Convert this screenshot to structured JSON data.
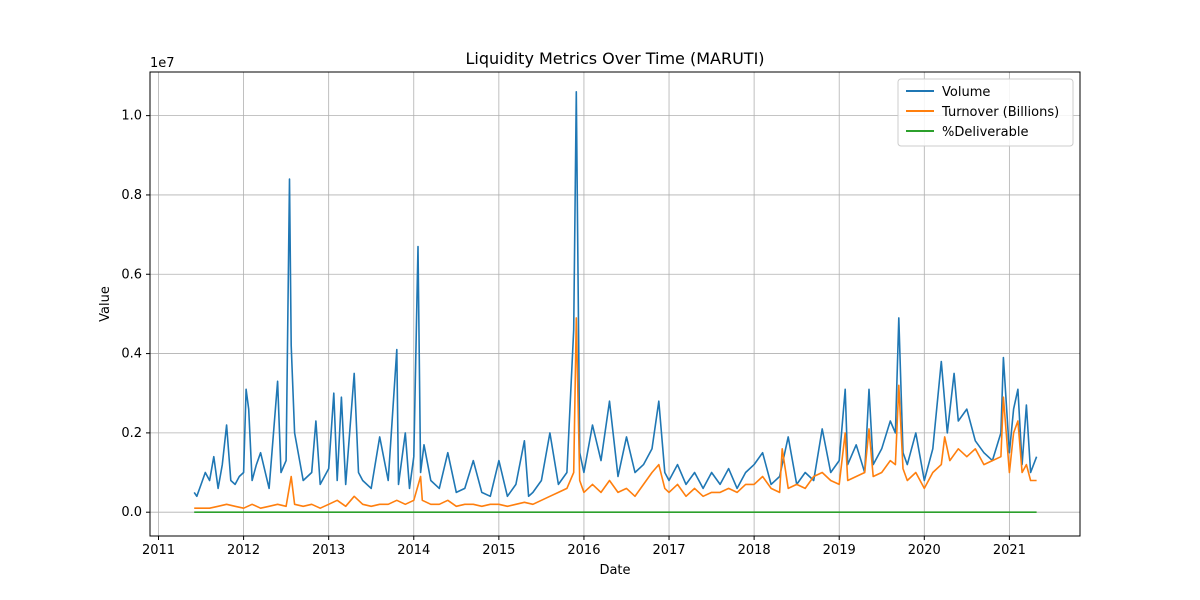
{
  "chart_data": {
    "type": "line",
    "title": "Liquidity Metrics Over Time (MARUTI)",
    "xlabel": "Date",
    "ylabel": "Value",
    "y_offset_label": "1e7",
    "xlim": [
      2010.9,
      2021.83
    ],
    "ylim": [
      -0.06,
      1.11
    ],
    "grid": true,
    "legend_position": "top-right",
    "x_ticks": [
      2011,
      2012,
      2013,
      2014,
      2015,
      2016,
      2017,
      2018,
      2019,
      2020,
      2021
    ],
    "x_tick_labels": [
      "2011",
      "2012",
      "2013",
      "2014",
      "2015",
      "2016",
      "2017",
      "2018",
      "2019",
      "2020",
      "2021"
    ],
    "y_ticks": [
      0.0,
      0.2,
      0.4,
      0.6,
      0.8,
      1.0
    ],
    "y_tick_labels": [
      "0.0",
      "0.2",
      "0.4",
      "0.6",
      "0.8",
      "1.0"
    ],
    "series": [
      {
        "name": "Volume",
        "color": "#1f77b4",
        "x": [
          2011.42,
          2011.45,
          2011.5,
          2011.55,
          2011.6,
          2011.65,
          2011.7,
          2011.75,
          2011.8,
          2011.85,
          2011.9,
          2011.95,
          2012.0,
          2012.03,
          2012.06,
          2012.1,
          2012.15,
          2012.2,
          2012.3,
          2012.4,
          2012.44,
          2012.5,
          2012.54,
          2012.56,
          2012.6,
          2012.7,
          2012.8,
          2012.85,
          2012.9,
          2013.0,
          2013.06,
          2013.1,
          2013.15,
          2013.2,
          2013.3,
          2013.35,
          2013.4,
          2013.5,
          2013.6,
          2013.7,
          2013.8,
          2013.82,
          2013.9,
          2013.95,
          2014.0,
          2014.05,
          2014.08,
          2014.12,
          2014.2,
          2014.3,
          2014.4,
          2014.5,
          2014.6,
          2014.7,
          2014.8,
          2014.9,
          2015.0,
          2015.1,
          2015.2,
          2015.3,
          2015.35,
          2015.4,
          2015.5,
          2015.6,
          2015.7,
          2015.8,
          2015.88,
          2015.91,
          2015.95,
          2016.0,
          2016.1,
          2016.2,
          2016.3,
          2016.4,
          2016.5,
          2016.6,
          2016.7,
          2016.8,
          2016.88,
          2016.95,
          2017.0,
          2017.1,
          2017.2,
          2017.3,
          2017.4,
          2017.5,
          2017.6,
          2017.7,
          2017.8,
          2017.9,
          2018.0,
          2018.1,
          2018.2,
          2018.3,
          2018.4,
          2018.5,
          2018.6,
          2018.7,
          2018.8,
          2018.9,
          2019.0,
          2019.07,
          2019.1,
          2019.2,
          2019.3,
          2019.35,
          2019.4,
          2019.5,
          2019.6,
          2019.66,
          2019.7,
          2019.75,
          2019.8,
          2019.9,
          2020.0,
          2020.1,
          2020.2,
          2020.27,
          2020.35,
          2020.4,
          2020.5,
          2020.6,
          2020.7,
          2020.8,
          2020.9,
          2020.93,
          2021.0,
          2021.05,
          2021.1,
          2021.15,
          2021.2,
          2021.25,
          2021.32
        ],
        "values": [
          0.05,
          0.04,
          0.07,
          0.1,
          0.08,
          0.14,
          0.06,
          0.12,
          0.22,
          0.08,
          0.07,
          0.09,
          0.1,
          0.31,
          0.26,
          0.08,
          0.12,
          0.15,
          0.06,
          0.33,
          0.1,
          0.13,
          0.84,
          0.42,
          0.2,
          0.08,
          0.1,
          0.23,
          0.07,
          0.11,
          0.3,
          0.08,
          0.29,
          0.07,
          0.35,
          0.1,
          0.08,
          0.06,
          0.19,
          0.08,
          0.41,
          0.07,
          0.2,
          0.06,
          0.14,
          0.67,
          0.1,
          0.17,
          0.08,
          0.06,
          0.15,
          0.05,
          0.06,
          0.13,
          0.05,
          0.04,
          0.13,
          0.04,
          0.07,
          0.18,
          0.04,
          0.05,
          0.08,
          0.2,
          0.07,
          0.1,
          0.46,
          1.06,
          0.15,
          0.1,
          0.22,
          0.13,
          0.28,
          0.09,
          0.19,
          0.1,
          0.12,
          0.16,
          0.28,
          0.1,
          0.08,
          0.12,
          0.07,
          0.1,
          0.06,
          0.1,
          0.07,
          0.11,
          0.06,
          0.1,
          0.12,
          0.15,
          0.07,
          0.09,
          0.19,
          0.07,
          0.1,
          0.08,
          0.21,
          0.1,
          0.13,
          0.31,
          0.12,
          0.17,
          0.1,
          0.31,
          0.12,
          0.16,
          0.23,
          0.2,
          0.49,
          0.15,
          0.12,
          0.2,
          0.08,
          0.16,
          0.38,
          0.2,
          0.35,
          0.23,
          0.26,
          0.18,
          0.15,
          0.13,
          0.2,
          0.39,
          0.15,
          0.26,
          0.31,
          0.12,
          0.27,
          0.1,
          0.14
        ]
      },
      {
        "name": "Turnover (Billions)",
        "color": "#ff7f0e",
        "x": [
          2011.42,
          2011.5,
          2011.6,
          2011.7,
          2011.8,
          2011.9,
          2012.0,
          2012.1,
          2012.2,
          2012.3,
          2012.4,
          2012.5,
          2012.56,
          2012.6,
          2012.7,
          2012.8,
          2012.9,
          2013.0,
          2013.1,
          2013.2,
          2013.3,
          2013.4,
          2013.5,
          2013.6,
          2013.7,
          2013.8,
          2013.9,
          2014.0,
          2014.08,
          2014.1,
          2014.2,
          2014.3,
          2014.4,
          2014.5,
          2014.6,
          2014.7,
          2014.8,
          2014.9,
          2015.0,
          2015.1,
          2015.2,
          2015.3,
          2015.4,
          2015.5,
          2015.6,
          2015.7,
          2015.8,
          2015.88,
          2015.91,
          2015.95,
          2016.0,
          2016.1,
          2016.2,
          2016.3,
          2016.4,
          2016.5,
          2016.6,
          2016.7,
          2016.8,
          2016.88,
          2016.95,
          2017.0,
          2017.1,
          2017.2,
          2017.3,
          2017.4,
          2017.5,
          2017.6,
          2017.7,
          2017.8,
          2017.9,
          2018.0,
          2018.1,
          2018.2,
          2018.3,
          2018.33,
          2018.4,
          2018.5,
          2018.6,
          2018.7,
          2018.8,
          2018.9,
          2019.0,
          2019.07,
          2019.1,
          2019.2,
          2019.3,
          2019.35,
          2019.4,
          2019.5,
          2019.6,
          2019.66,
          2019.7,
          2019.75,
          2019.8,
          2019.9,
          2020.0,
          2020.1,
          2020.2,
          2020.24,
          2020.3,
          2020.4,
          2020.5,
          2020.6,
          2020.7,
          2020.8,
          2020.9,
          2020.93,
          2021.0,
          2021.05,
          2021.1,
          2021.15,
          2021.2,
          2021.25,
          2021.32
        ],
        "values": [
          0.01,
          0.01,
          0.01,
          0.015,
          0.02,
          0.015,
          0.01,
          0.02,
          0.01,
          0.015,
          0.02,
          0.015,
          0.09,
          0.02,
          0.015,
          0.02,
          0.01,
          0.02,
          0.03,
          0.015,
          0.04,
          0.02,
          0.015,
          0.02,
          0.02,
          0.03,
          0.02,
          0.03,
          0.09,
          0.03,
          0.02,
          0.02,
          0.03,
          0.015,
          0.02,
          0.02,
          0.015,
          0.02,
          0.02,
          0.015,
          0.02,
          0.025,
          0.02,
          0.03,
          0.04,
          0.05,
          0.06,
          0.1,
          0.49,
          0.08,
          0.05,
          0.07,
          0.05,
          0.08,
          0.05,
          0.06,
          0.04,
          0.07,
          0.1,
          0.12,
          0.06,
          0.05,
          0.07,
          0.04,
          0.06,
          0.04,
          0.05,
          0.05,
          0.06,
          0.05,
          0.07,
          0.07,
          0.09,
          0.06,
          0.05,
          0.16,
          0.06,
          0.07,
          0.06,
          0.09,
          0.1,
          0.08,
          0.07,
          0.2,
          0.08,
          0.09,
          0.1,
          0.21,
          0.09,
          0.1,
          0.13,
          0.12,
          0.32,
          0.11,
          0.08,
          0.1,
          0.06,
          0.1,
          0.12,
          0.19,
          0.13,
          0.16,
          0.14,
          0.16,
          0.12,
          0.13,
          0.14,
          0.29,
          0.1,
          0.2,
          0.23,
          0.1,
          0.12,
          0.08,
          0.08
        ]
      },
      {
        "name": "%Deliverable",
        "color": "#2ca02c",
        "x": [
          2011.42,
          2021.32
        ],
        "values": [
          0.0,
          0.0
        ]
      }
    ]
  }
}
